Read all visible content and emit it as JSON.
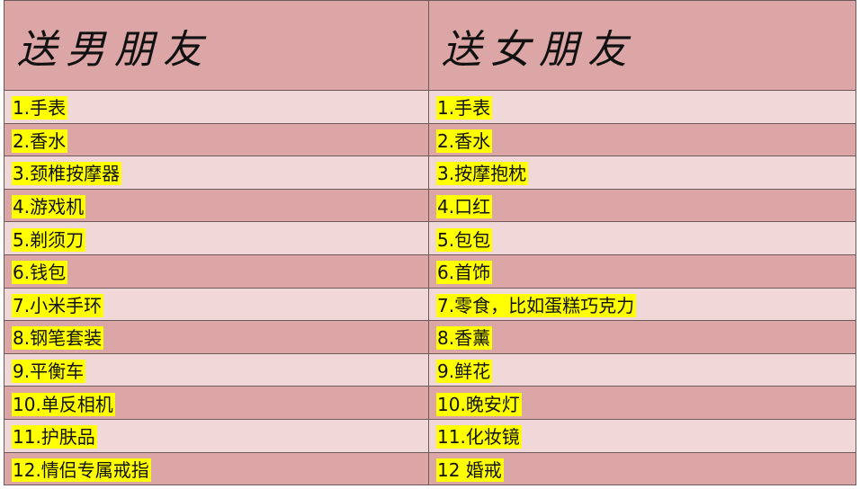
{
  "table": {
    "header": [
      "送男朋友",
      "送女朋友"
    ],
    "rows": [
      [
        "1.手表",
        "1.手表"
      ],
      [
        "2.香水",
        "2.香水"
      ],
      [
        "3.颈椎按摩器",
        "3.按摩抱枕"
      ],
      [
        "4.游戏机",
        "4.口红"
      ],
      [
        "5.剃须刀",
        "5.包包"
      ],
      [
        "6.钱包",
        "6.首饰"
      ],
      [
        "7.小米手环",
        "7.零食，比如蛋糕巧克力"
      ],
      [
        "8.钢笔套装",
        "8.香薰"
      ],
      [
        "9.平衡车",
        "9.鲜花"
      ],
      [
        "10.单反相机",
        "10.晚安灯"
      ],
      [
        "11.护肤品",
        "11.化妆镜"
      ],
      [
        "12.情侣专属戒指",
        "12 婚戒"
      ]
    ]
  }
}
